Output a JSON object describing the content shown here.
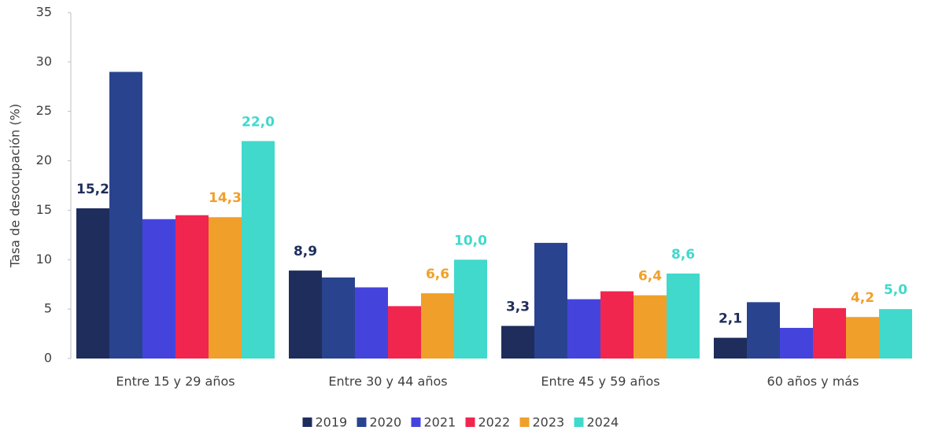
{
  "chart_data": {
    "type": "bar",
    "y_label": "Tasa de desocupación (%)",
    "categories": [
      "Entre 15 y 29 años",
      "Entre 30 y 44 años",
      "Entre 45 y 59 años",
      "60 años y más"
    ],
    "series": [
      {
        "name": "2019",
        "color": "#1f2d5c",
        "values": [
          15.2,
          8.9,
          3.3,
          2.1
        ],
        "value_labels": [
          "15,2",
          "8,9",
          "3,3",
          "2,1"
        ]
      },
      {
        "name": "2020",
        "color": "#2a438f",
        "values": [
          29.0,
          8.2,
          11.7,
          5.7
        ]
      },
      {
        "name": "2021",
        "color": "#4444dd",
        "values": [
          14.1,
          7.2,
          6.0,
          3.1
        ]
      },
      {
        "name": "2022",
        "color": "#f0264f",
        "values": [
          14.5,
          5.3,
          6.8,
          5.1
        ]
      },
      {
        "name": "2023",
        "color": "#f0a02a",
        "values": [
          14.3,
          6.6,
          6.4,
          4.2
        ],
        "value_labels": [
          "14,3",
          "6,6",
          "6,4",
          "4,2"
        ]
      },
      {
        "name": "2024",
        "color": "#40d9cc",
        "values": [
          22.0,
          10.0,
          8.6,
          5.0
        ],
        "value_labels": [
          "22,0",
          "10,0",
          "8,6",
          "5,0"
        ]
      }
    ],
    "ylim": [
      0,
      35
    ],
    "yticks": [
      0,
      5,
      10,
      15,
      20,
      25,
      30,
      35
    ],
    "legend": "bottom"
  }
}
